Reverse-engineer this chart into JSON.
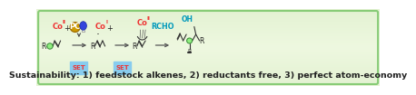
{
  "bg_light": "#e8f8e2",
  "bg_dark": "#c5e8b0",
  "border_color": "#88cc77",
  "subtitle": "Sustainability: 1) feedstock alkenes, 2) reductants free, 3) perfect atom-economy",
  "subtitle_fontsize": 6.8,
  "subtitle_color": "#222222",
  "co_color": "#ee3333",
  "set_color": "#ee3333",
  "set_bg": "#88ccee",
  "rcho_color": "#0099bb",
  "oh_color": "#0099bb",
  "r_color": "#222222",
  "pc_gold": "#cc9900",
  "bulb_color": "#3344dd",
  "arrow_color": "#555555",
  "line_color": "#333333"
}
